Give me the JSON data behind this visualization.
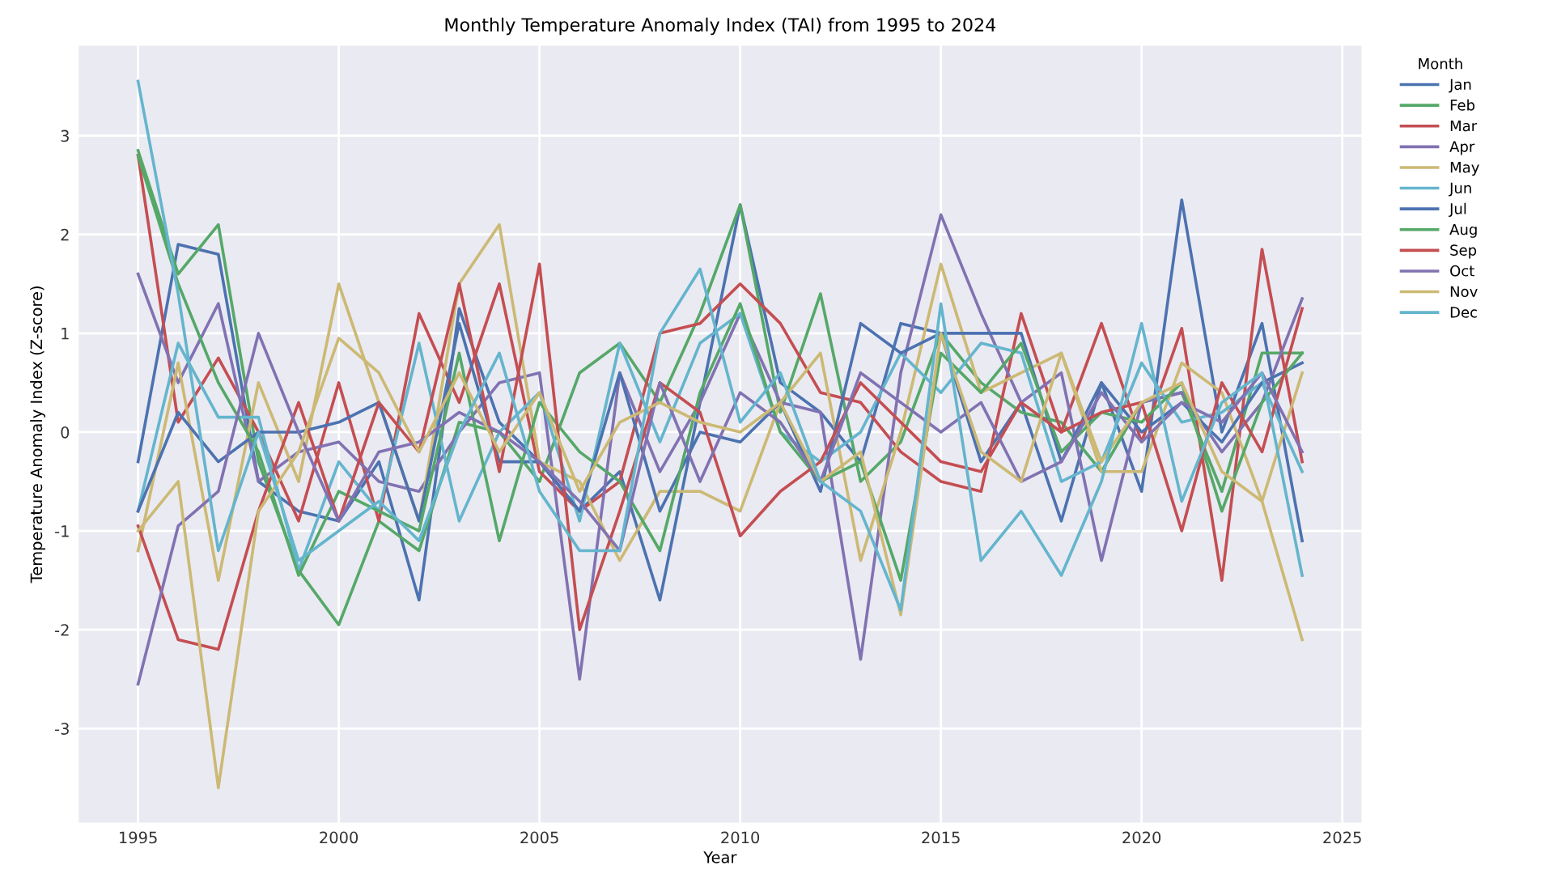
{
  "chart_data": {
    "type": "line",
    "title": "Monthly Temperature Anomaly Index (TAI) from 1995 to 2024",
    "xlabel": "Year",
    "ylabel": "Temperature Anomaly Index (Z-score)",
    "legend_title": "Month",
    "x": [
      1995,
      1996,
      1997,
      1998,
      1999,
      2000,
      2001,
      2002,
      2003,
      2004,
      2005,
      2006,
      2007,
      2008,
      2009,
      2010,
      2011,
      2012,
      2013,
      2014,
      2015,
      2016,
      2017,
      2018,
      2019,
      2020,
      2021,
      2022,
      2023,
      2024
    ],
    "xlim": [
      1993.5,
      2025.5
    ],
    "xticks": [
      1995,
      2000,
      2005,
      2010,
      2015,
      2020,
      2025
    ],
    "ylim": [
      -3.96,
      3.92
    ],
    "yticks": [
      -3,
      -2,
      -1,
      0,
      1,
      2,
      3
    ],
    "grid": true,
    "legend": "top right",
    "marker": "none",
    "line_style": "solid",
    "series": [
      {
        "name": "Jan",
        "color": "#4c72b0",
        "values": [
          -0.3,
          1.9,
          1.8,
          -0.5,
          -0.8,
          -0.9,
          -0.3,
          -1.7,
          1.25,
          0.1,
          -0.3,
          -0.8,
          -0.4,
          -1.7,
          0.3,
          2.3,
          0.5,
          0.2,
          -0.3,
          1.1,
          1.0,
          -0.3,
          0.3,
          -0.9,
          0.5,
          -0.6,
          2.35,
          0.0,
          1.1,
          -1.1
        ]
      },
      {
        "name": "Feb",
        "color": "#55a868",
        "values": [
          2.85,
          1.6,
          2.1,
          -0.3,
          -1.4,
          -1.95,
          -0.9,
          -1.2,
          0.1,
          0.0,
          -0.5,
          0.6,
          0.9,
          0.3,
          1.2,
          2.3,
          0.2,
          1.4,
          -0.5,
          -0.1,
          1.0,
          0.5,
          0.2,
          0.1,
          -0.4,
          0.3,
          0.4,
          -0.6,
          0.8,
          0.8
        ]
      },
      {
        "name": "Mar",
        "color": "#c44e52",
        "values": [
          2.8,
          0.1,
          0.75,
          0.0,
          -0.9,
          0.5,
          -0.9,
          1.2,
          0.3,
          1.5,
          -0.4,
          -0.8,
          -0.5,
          1.0,
          1.1,
          1.5,
          1.1,
          0.4,
          0.3,
          -0.2,
          -0.5,
          -0.6,
          1.2,
          0.0,
          1.1,
          -0.1,
          1.05,
          -1.5,
          1.85,
          -0.3
        ]
      },
      {
        "name": "Apr",
        "color": "#8172b2",
        "values": [
          1.6,
          0.5,
          1.3,
          -0.5,
          -0.2,
          -0.1,
          -0.5,
          -0.6,
          0.0,
          0.5,
          0.6,
          -2.5,
          0.6,
          -0.4,
          0.3,
          1.2,
          0.3,
          0.2,
          -2.3,
          0.6,
          2.2,
          1.2,
          0.3,
          0.6,
          -1.3,
          0.3,
          0.4,
          -0.2,
          0.3,
          1.35
        ]
      },
      {
        "name": "May",
        "color": "#ccb974",
        "values": [
          -1.2,
          0.7,
          -1.5,
          0.5,
          -0.5,
          1.5,
          0.3,
          -0.9,
          1.5,
          2.1,
          -0.3,
          -0.5,
          -1.3,
          -0.6,
          -0.6,
          -0.8,
          0.3,
          0.8,
          -1.3,
          0.0,
          1.7,
          0.4,
          0.6,
          0.8,
          -0.4,
          -0.4,
          0.7,
          0.4,
          -0.7,
          0.6
        ]
      },
      {
        "name": "Jun",
        "color": "#64b5cd",
        "values": [
          -0.8,
          0.9,
          0.15,
          0.15,
          -1.4,
          -0.3,
          -0.8,
          0.9,
          -0.9,
          0.0,
          0.4,
          -0.9,
          0.9,
          -0.1,
          0.9,
          1.2,
          0.0,
          -0.3,
          0.0,
          0.8,
          0.4,
          0.9,
          0.8,
          -0.5,
          -0.3,
          0.7,
          0.1,
          0.2,
          0.5,
          -0.4
        ]
      },
      {
        "name": "Jul",
        "color": "#4c72b0",
        "values": [
          -0.8,
          0.2,
          -0.3,
          0.0,
          0.0,
          0.1,
          0.3,
          -0.9,
          1.1,
          -0.3,
          -0.3,
          -0.8,
          0.6,
          -0.8,
          0.0,
          -0.1,
          0.3,
          -0.6,
          1.1,
          0.8,
          1.0,
          1.0,
          1.0,
          -0.3,
          0.5,
          0.0,
          0.3,
          -0.1,
          0.5,
          0.7
        ]
      },
      {
        "name": "Aug",
        "color": "#55a868",
        "values": [
          2.8,
          1.5,
          0.5,
          -0.2,
          -1.45,
          -0.6,
          -0.8,
          -1.0,
          0.8,
          -1.1,
          0.3,
          -0.2,
          -0.5,
          -1.2,
          0.4,
          1.3,
          0.0,
          -0.5,
          -0.3,
          -1.5,
          0.8,
          0.4,
          0.9,
          -0.2,
          0.2,
          0.1,
          0.5,
          -0.8,
          0.3,
          0.8
        ]
      },
      {
        "name": "Sep",
        "color": "#c44e52",
        "values": [
          -0.95,
          -2.1,
          -2.2,
          -0.8,
          0.3,
          -0.9,
          0.3,
          -0.2,
          1.5,
          -0.4,
          1.7,
          -2.0,
          -0.8,
          0.5,
          0.2,
          -1.05,
          -0.6,
          -0.3,
          0.5,
          0.1,
          -0.3,
          -0.4,
          0.3,
          0.0,
          0.2,
          0.3,
          -1.0,
          0.5,
          -0.2,
          1.25
        ]
      },
      {
        "name": "Oct",
        "color": "#8172b2",
        "values": [
          -2.55,
          -0.95,
          -0.6,
          1.0,
          0.0,
          -0.9,
          -0.2,
          -0.1,
          0.2,
          0.0,
          -0.3,
          -0.7,
          -1.2,
          0.5,
          -0.5,
          0.4,
          0.1,
          -0.5,
          0.6,
          0.3,
          0.0,
          0.3,
          -0.5,
          -0.3,
          0.4,
          -0.1,
          0.3,
          0.1,
          0.6,
          -0.2
        ]
      },
      {
        "name": "Nov",
        "color": "#ccb974",
        "values": [
          -1.0,
          -0.5,
          -3.6,
          -0.8,
          -0.2,
          0.95,
          0.6,
          -0.2,
          0.6,
          -0.2,
          0.4,
          -0.6,
          0.1,
          0.3,
          0.1,
          0.0,
          0.3,
          -0.5,
          -0.2,
          -1.85,
          1.0,
          -0.2,
          -0.5,
          0.8,
          -0.3,
          0.3,
          0.5,
          -0.4,
          -0.7,
          -2.1
        ]
      },
      {
        "name": "Dec",
        "color": "#64b5cd",
        "values": [
          3.55,
          1.4,
          -1.2,
          0.0,
          -1.3,
          -1.0,
          -0.7,
          -1.1,
          0.0,
          0.8,
          -0.6,
          -1.2,
          -1.2,
          1.0,
          1.65,
          0.1,
          0.6,
          -0.5,
          -0.8,
          -1.8,
          1.3,
          -1.3,
          -0.8,
          -1.45,
          -0.5,
          1.1,
          -0.7,
          0.3,
          0.6,
          -1.45
        ]
      }
    ]
  }
}
